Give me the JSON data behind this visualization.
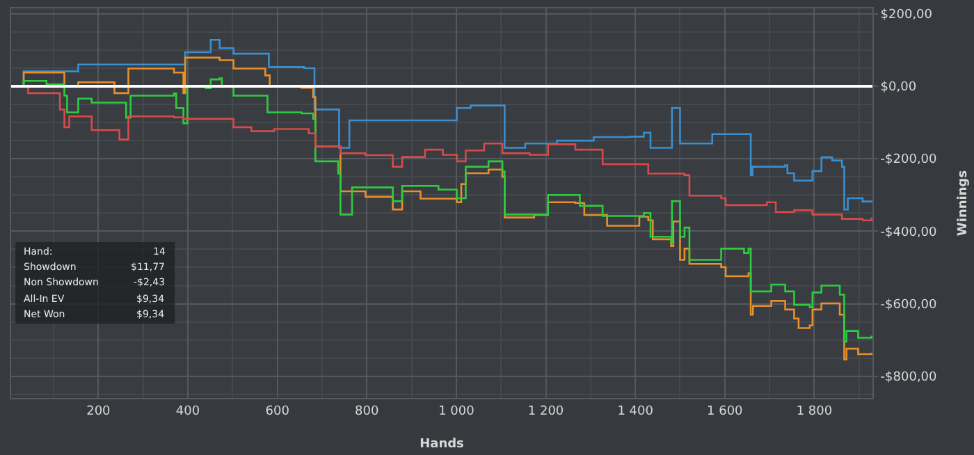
{
  "chart_data": {
    "type": "step",
    "xlabel": "Hands",
    "ylabel": "Winnings",
    "annotations": [
      "Hand:",
      "14",
      "Showdown",
      "$11,77",
      "Non Showdown",
      "-$2,43",
      "All-In EV",
      "$9,34",
      "Net Won",
      "$9,34"
    ],
    "xlim": [
      5,
      1930
    ],
    "ylim": [
      -860,
      215
    ],
    "xticks": [
      200,
      400,
      600,
      800,
      {
        "value": 1000,
        "label": "1 000"
      },
      {
        "value": 1200,
        "label": "1 200"
      },
      {
        "value": 1400,
        "label": "1 400"
      },
      {
        "value": 1600,
        "label": "1 600"
      },
      {
        "value": 1800,
        "label": "1 800"
      }
    ],
    "yticks": [
      {
        "value": 200,
        "label": "$200,00"
      },
      {
        "value": 0,
        "label": "$0,00"
      },
      {
        "value": -200,
        "label": "-$200,00"
      },
      {
        "value": -400,
        "label": "-$400,00"
      },
      {
        "value": -600,
        "label": "-$600,00"
      },
      {
        "value": -800,
        "label": "-$800,00"
      }
    ],
    "grid": true,
    "ref_lines": [
      {
        "axis": "y",
        "value": 0,
        "label": null,
        "color": "#ffffff"
      }
    ],
    "series": [
      {
        "color": "#3a8fd0",
        "x": [
          5,
          33,
          155,
          380,
          394,
          451,
          471,
          502,
          581,
          660,
          683,
          738,
          761,
          1001,
          1032,
          1108,
          1154,
          1225,
          1307,
          1388,
          1419,
          1434,
          1480,
          1482,
          1497,
          1500,
          1572,
          1655,
          1658,
          1662,
          1735,
          1740,
          1755,
          1796,
          1816,
          1840,
          1862,
          1867,
          1875,
          1908,
          1928
        ],
        "values": [
          0,
          41,
          60,
          60,
          94,
          128,
          105,
          90,
          53,
          50,
          -64,
          -170,
          -94,
          -60,
          -53,
          -170,
          -158,
          -150,
          -140,
          -139,
          -128,
          -170,
          -170,
          -60,
          -60,
          -158,
          -132,
          -132,
          -245,
          -222,
          -218,
          -240,
          -260,
          -234,
          -196,
          -205,
          -222,
          -340,
          -309,
          -318,
          -315
        ]
      },
      {
        "color": "#e8902a",
        "x": [
          5,
          33,
          124,
          155,
          236,
          267,
          369,
          390,
          394,
          471,
          502,
          573,
          583,
          654,
          680,
          685,
          741,
          797,
          858,
          879,
          920,
          1001,
          1011,
          1021,
          1072,
          1103,
          1108,
          1174,
          1205,
          1266,
          1286,
          1337,
          1409,
          1429,
          1439,
          1480,
          1485,
          1495,
          1500,
          1510,
          1521,
          1592,
          1602,
          1653,
          1658,
          1663,
          1704,
          1735,
          1755,
          1765,
          1790,
          1796,
          1816,
          1857,
          1867,
          1872,
          1898,
          1928
        ],
        "values": [
          0,
          38,
          0,
          11,
          -19,
          49,
          38,
          -19,
          79,
          72,
          49,
          30,
          0,
          -4,
          -30,
          -166,
          -290,
          -305,
          -340,
          -290,
          -310,
          -320,
          -270,
          -240,
          -230,
          -250,
          -362,
          -355,
          -320,
          -322,
          -355,
          -385,
          -360,
          -370,
          -422,
          -441,
          -373,
          -373,
          -479,
          -448,
          -490,
          -499,
          -524,
          -516,
          -630,
          -606,
          -592,
          -616,
          -641,
          -667,
          -660,
          -616,
          -599,
          -630,
          -754,
          -724,
          -739,
          -735
        ]
      },
      {
        "color": "#2ecc40",
        "x": [
          5,
          33,
          84,
          124,
          130,
          155,
          185,
          262,
          272,
          369,
          374,
          390,
          399,
          440,
          451,
          471,
          476,
          502,
          578,
          654,
          680,
          685,
          736,
          741,
          761,
          767,
          858,
          879,
          960,
          1001,
          1021,
          1072,
          1103,
          1108,
          1205,
          1276,
          1327,
          1419,
          1434,
          1480,
          1482,
          1497,
          1500,
          1510,
          1521,
          1592,
          1643,
          1653,
          1658,
          1704,
          1735,
          1755,
          1790,
          1796,
          1816,
          1857,
          1867,
          1872,
          1898,
          1928
        ],
        "values": [
          0,
          15,
          5,
          -26,
          -72,
          -34,
          -45,
          -87,
          -26,
          -20,
          -60,
          -102,
          0,
          -5,
          19,
          22,
          0,
          -26,
          -72,
          -75,
          -90,
          -207,
          -241,
          -354,
          -354,
          -279,
          -317,
          -275,
          -285,
          -309,
          -222,
          -207,
          -235,
          -354,
          -300,
          -330,
          -358,
          -350,
          -415,
          -430,
          -317,
          -317,
          -415,
          -390,
          -479,
          -448,
          -460,
          -448,
          -566,
          -547,
          -566,
          -603,
          -610,
          -569,
          -550,
          -575,
          -705,
          -675,
          -694,
          -688
        ]
      },
      {
        "color": "#d94a4a",
        "x": [
          5,
          43,
          114,
          124,
          135,
          185,
          247,
          267,
          369,
          390,
          502,
          542,
          593,
          670,
          685,
          741,
          797,
          858,
          879,
          930,
          970,
          1001,
          1021,
          1062,
          1103,
          1164,
          1205,
          1266,
          1327,
          1419,
          1429,
          1510,
          1521,
          1592,
          1602,
          1643,
          1694,
          1714,
          1755,
          1796,
          1857,
          1862,
          1908,
          1928
        ],
        "values": [
          0,
          -19,
          -64,
          -113,
          -83,
          -121,
          -147,
          -83,
          -86,
          -90,
          -113,
          -124,
          -118,
          -130,
          -166,
          -185,
          -190,
          -222,
          -195,
          -175,
          -189,
          -207,
          -177,
          -158,
          -185,
          -189,
          -160,
          -175,
          -215,
          -215,
          -241,
          -245,
          -302,
          -309,
          -328,
          -328,
          -320,
          -347,
          -342,
          -354,
          -354,
          -366,
          -370,
          -362
        ]
      }
    ]
  }
}
